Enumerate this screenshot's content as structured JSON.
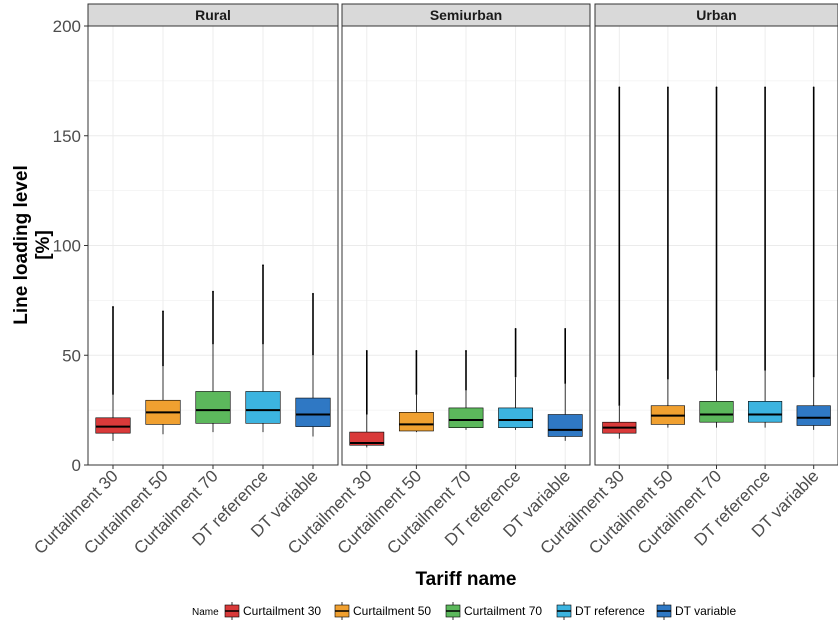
{
  "chart_data": {
    "type": "boxplot",
    "xlabel": "Tariff name",
    "ylabel_lines": [
      "Line loading level",
      "[%]"
    ],
    "ylim": [
      0,
      200
    ],
    "yticks": [
      0,
      50,
      100,
      150,
      200
    ],
    "grid": true,
    "legend_position": "bottom",
    "legend_title": "Name",
    "categories": [
      "Curtailment 30",
      "Curtailment 50",
      "Curtailment 70",
      "DT reference",
      "DT variable"
    ],
    "colors": {
      "Curtailment 30": "#d93a3a",
      "Curtailment 50": "#f0a030",
      "Curtailment 70": "#5cb85c",
      "DT reference": "#3cb4e0",
      "DT variable": "#2f78c4"
    },
    "panels": [
      {
        "name": "Rural",
        "boxes": [
          {
            "category": "Curtailment 30",
            "lower_whisker": 11,
            "q1": 14.5,
            "median": 17.5,
            "q3": 21.5,
            "upper_whisker": 32,
            "max_outlier": 72
          },
          {
            "category": "Curtailment 50",
            "lower_whisker": 14,
            "q1": 18.5,
            "median": 24,
            "q3": 29.5,
            "upper_whisker": 45,
            "max_outlier": 70
          },
          {
            "category": "Curtailment 70",
            "lower_whisker": 15,
            "q1": 19,
            "median": 25,
            "q3": 33.5,
            "upper_whisker": 55,
            "max_outlier": 79
          },
          {
            "category": "DT reference",
            "lower_whisker": 15,
            "q1": 19,
            "median": 25,
            "q3": 33.5,
            "upper_whisker": 55,
            "max_outlier": 91
          },
          {
            "category": "DT variable",
            "lower_whisker": 13,
            "q1": 17.5,
            "median": 23,
            "q3": 30.5,
            "upper_whisker": 50,
            "max_outlier": 78
          }
        ]
      },
      {
        "name": "Semiurban",
        "boxes": [
          {
            "category": "Curtailment 30",
            "lower_whisker": 8,
            "q1": 9,
            "median": 10,
            "q3": 15,
            "upper_whisker": 23,
            "max_outlier": 52
          },
          {
            "category": "Curtailment 50",
            "lower_whisker": 15,
            "q1": 15.5,
            "median": 18.5,
            "q3": 24,
            "upper_whisker": 32,
            "max_outlier": 52
          },
          {
            "category": "Curtailment 70",
            "lower_whisker": 16,
            "q1": 17,
            "median": 20.5,
            "q3": 26,
            "upper_whisker": 34,
            "max_outlier": 52
          },
          {
            "category": "DT reference",
            "lower_whisker": 16,
            "q1": 17,
            "median": 20.5,
            "q3": 26,
            "upper_whisker": 40,
            "max_outlier": 62
          },
          {
            "category": "DT variable",
            "lower_whisker": 11,
            "q1": 13,
            "median": 16,
            "q3": 23,
            "upper_whisker": 37,
            "max_outlier": 62
          }
        ]
      },
      {
        "name": "Urban",
        "boxes": [
          {
            "category": "Curtailment 30",
            "lower_whisker": 12,
            "q1": 14.5,
            "median": 17,
            "q3": 19.5,
            "upper_whisker": 27,
            "max_outlier": 172
          },
          {
            "category": "Curtailment 50",
            "lower_whisker": 17,
            "q1": 18.5,
            "median": 22.5,
            "q3": 27,
            "upper_whisker": 39,
            "max_outlier": 172
          },
          {
            "category": "Curtailment 70",
            "lower_whisker": 17,
            "q1": 19.5,
            "median": 23,
            "q3": 29,
            "upper_whisker": 43,
            "max_outlier": 172
          },
          {
            "category": "DT reference",
            "lower_whisker": 17,
            "q1": 19.5,
            "median": 23,
            "q3": 29,
            "upper_whisker": 43,
            "max_outlier": 172
          },
          {
            "category": "DT variable",
            "lower_whisker": 16,
            "q1": 18,
            "median": 21.5,
            "q3": 27,
            "upper_whisker": 40,
            "max_outlier": 172
          }
        ]
      }
    ]
  }
}
